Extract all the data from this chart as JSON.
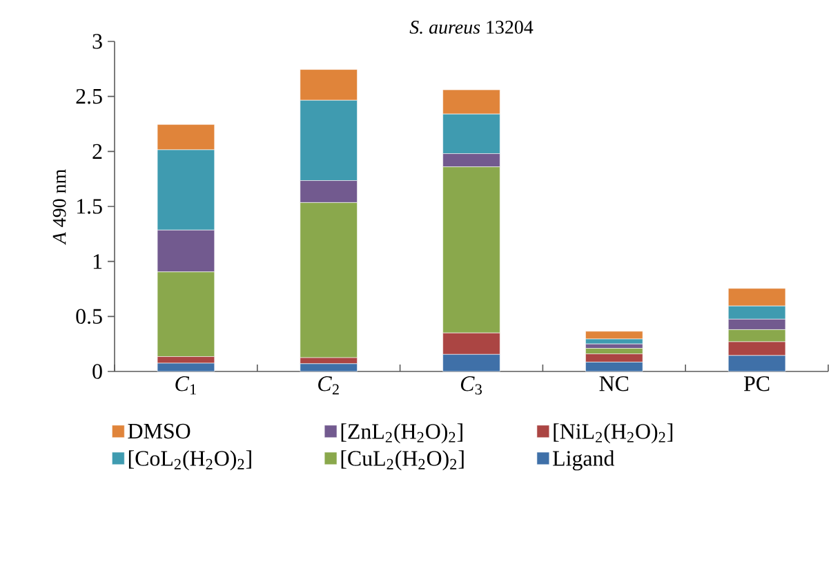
{
  "chart_data": {
    "type": "bar",
    "stacked": true,
    "title": "*S. aureus* 13204",
    "ylabel": "*A* 490 nm",
    "categories": [
      "*C*$_{1}$",
      "*C*$_{2}$",
      "*C*$_{3}$",
      "NC",
      "PC"
    ],
    "series": [
      {
        "name": "Ligand",
        "color": "#3f70a8",
        "values": [
          0.075,
          0.07,
          0.155,
          0.085,
          0.145
        ]
      },
      {
        "name": "[NiL$_{2}$(H$_{2}$O)$_{2}$]",
        "color": "#ab4543",
        "values": [
          0.06,
          0.055,
          0.195,
          0.075,
          0.125
        ]
      },
      {
        "name": "[CuL$_{2}$(H$_{2}$O)$_{2}$]",
        "color": "#8aa84c",
        "values": [
          0.77,
          1.41,
          1.51,
          0.05,
          0.11
        ]
      },
      {
        "name": "[ZnL$_{2}$(H$_{2}$O)$_{2}$]",
        "color": "#725a8f",
        "values": [
          0.38,
          0.2,
          0.12,
          0.04,
          0.095
        ]
      },
      {
        "name": "[CoL$_{2}$(H$_{2}$O)$_{2}$]",
        "color": "#3f9bb0",
        "values": [
          0.73,
          0.73,
          0.36,
          0.045,
          0.12
        ]
      },
      {
        "name": "DMSO",
        "color": "#e0843a",
        "values": [
          0.23,
          0.28,
          0.22,
          0.07,
          0.16
        ]
      }
    ],
    "ylim": [
      0,
      3
    ],
    "yticks": [
      0,
      0.5,
      1,
      1.5,
      2,
      2.5,
      3
    ],
    "legend": "bottom"
  }
}
